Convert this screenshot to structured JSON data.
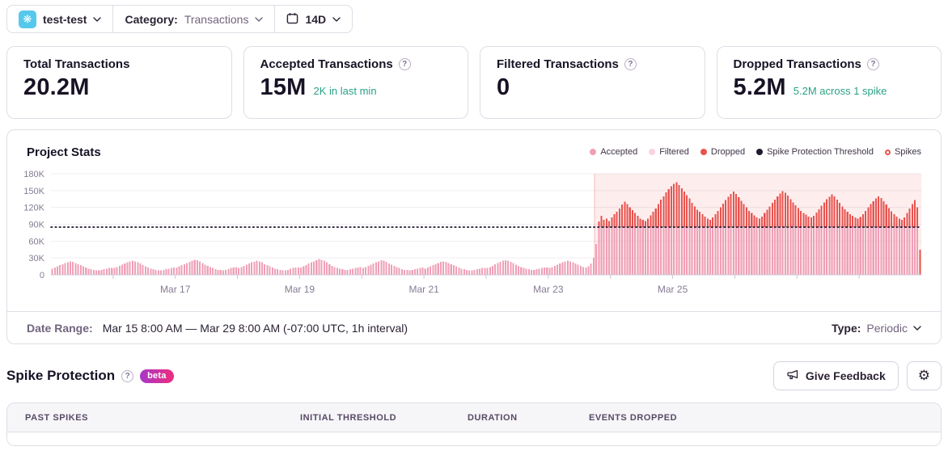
{
  "header": {
    "project_name": "test-test",
    "project_icon": "❋",
    "category_label": "Category:",
    "category_value": "Transactions",
    "period": "14D"
  },
  "cards": [
    {
      "label": "Total Transactions",
      "value": "20.2M",
      "sub": null
    },
    {
      "label": "Accepted Transactions",
      "value": "15M",
      "sub": "2K in last min"
    },
    {
      "label": "Filtered Transactions",
      "value": "0",
      "sub": null
    },
    {
      "label": "Dropped Transactions",
      "value": "5.2M",
      "sub": "5.2M across 1 spike"
    }
  ],
  "accent_colors": {
    "teal_subtext": "#2ba185",
    "beta_gradient": [
      "#a737c9",
      "#ef2d7c"
    ]
  },
  "chart_data": {
    "type": "bar",
    "stacked": true,
    "title": "Project Stats",
    "x_start": "Mar 15 8:00 AM",
    "x_end": "Mar 29 8:00 AM",
    "interval_hours": 1,
    "num_buckets": 336,
    "ylim_k": [
      0,
      180
    ],
    "y_ticks": [
      {
        "value_k": 180,
        "label": "180K"
      },
      {
        "value_k": 150,
        "label": "150K"
      },
      {
        "value_k": 120,
        "label": "120K"
      },
      {
        "value_k": 90,
        "label": "90K"
      },
      {
        "value_k": 60,
        "label": "60K"
      },
      {
        "value_k": 30,
        "label": "30K"
      },
      {
        "value_k": 0,
        "label": "0"
      }
    ],
    "x_tick_labels": [
      {
        "label": "Mar 17",
        "hour": 48
      },
      {
        "label": "Mar 19",
        "hour": 96
      },
      {
        "label": "Mar 21",
        "hour": 144
      },
      {
        "label": "Mar 23",
        "hour": 192
      },
      {
        "label": "Mar 25",
        "hour": 240
      }
    ],
    "day_tick_every_hours": 24,
    "grid": true,
    "legend_position": "top-right",
    "legend": [
      {
        "label": "Accepted",
        "color": "#ef9fb7",
        "hollow": false
      },
      {
        "label": "Filtered",
        "color": "#f9d3df",
        "hollow": false
      },
      {
        "label": "Dropped",
        "color": "#e8534f",
        "hollow": false
      },
      {
        "label": "Spike Protection Threshold",
        "color": "#231a30",
        "hollow": false
      },
      {
        "label": "Spikes",
        "color": "#e8534f",
        "hollow": true
      }
    ],
    "threshold_k": 85,
    "threshold_style": "dotted-black-line",
    "spike_region": {
      "start_hour": 210,
      "end_hour": 336,
      "fill": "rgba(235,80,80,0.10)",
      "edge": "rgba(235,80,80,0.35)"
    },
    "series": [
      {
        "name": "Accepted",
        "color": "#ef9fb7",
        "derivation": "min(total, threshold)"
      },
      {
        "name": "Filtered",
        "color": "#f9d3df",
        "constant_value": 0
      },
      {
        "name": "Dropped",
        "color": "#e8534f",
        "derivation": "max(0, total - threshold)"
      }
    ],
    "last_bar_all_dropped": true,
    "totals_k": [
      11,
      13,
      15,
      17,
      19,
      21,
      22,
      24,
      23,
      21,
      19,
      17,
      15,
      13,
      11,
      10,
      9,
      8,
      8,
      9,
      10,
      11,
      12,
      12,
      12,
      14,
      16,
      18,
      20,
      22,
      24,
      25,
      24,
      22,
      20,
      17,
      15,
      13,
      11,
      10,
      9,
      8,
      8,
      9,
      10,
      11,
      12,
      13,
      13,
      15,
      17,
      19,
      21,
      23,
      25,
      27,
      26,
      24,
      21,
      18,
      16,
      14,
      12,
      10,
      9,
      9,
      8,
      9,
      10,
      12,
      13,
      14,
      12,
      14,
      16,
      18,
      20,
      22,
      23,
      25,
      24,
      22,
      19,
      17,
      15,
      13,
      11,
      10,
      9,
      8,
      8,
      9,
      11,
      12,
      13,
      13,
      13,
      15,
      17,
      20,
      22,
      24,
      26,
      28,
      27,
      25,
      22,
      19,
      16,
      14,
      12,
      11,
      10,
      9,
      9,
      10,
      11,
      12,
      13,
      14,
      12,
      14,
      16,
      18,
      20,
      22,
      24,
      26,
      25,
      23,
      20,
      18,
      16,
      14,
      12,
      10,
      9,
      9,
      8,
      9,
      10,
      11,
      12,
      13,
      11,
      13,
      15,
      17,
      19,
      21,
      23,
      24,
      23,
      21,
      19,
      17,
      15,
      13,
      11,
      10,
      9,
      8,
      8,
      9,
      10,
      11,
      12,
      12,
      12,
      14,
      16,
      19,
      21,
      23,
      25,
      26,
      25,
      23,
      21,
      18,
      16,
      14,
      12,
      11,
      10,
      9,
      9,
      10,
      11,
      12,
      13,
      13,
      12,
      14,
      16,
      18,
      20,
      22,
      24,
      25,
      24,
      22,
      20,
      18,
      16,
      14,
      13,
      15,
      20,
      30,
      55,
      95,
      105,
      98,
      100,
      96,
      102,
      108,
      112,
      118,
      125,
      130,
      126,
      120,
      115,
      110,
      105,
      100,
      98,
      96,
      100,
      106,
      112,
      118,
      126,
      134,
      140,
      147,
      153,
      158,
      162,
      165,
      160,
      154,
      148,
      142,
      136,
      128,
      122,
      116,
      112,
      108,
      104,
      100,
      98,
      102,
      108,
      114,
      120,
      127,
      133,
      139,
      144,
      148,
      144,
      138,
      132,
      126,
      120,
      114,
      110,
      106,
      102,
      100,
      104,
      110,
      116,
      122,
      128,
      134,
      140,
      145,
      149,
      146,
      141,
      135,
      129,
      124,
      119,
      114,
      110,
      107,
      104,
      102,
      105,
      111,
      117,
      123,
      129,
      135,
      139,
      143,
      140,
      134,
      128,
      122,
      117,
      112,
      108,
      105,
      102,
      100,
      103,
      108,
      114,
      120,
      126,
      131,
      136,
      140,
      137,
      131,
      125,
      119,
      113,
      108,
      104,
      100,
      98,
      102,
      110,
      118,
      126,
      133,
      120,
      45
    ]
  },
  "chart_footer": {
    "date_range_label": "Date Range:",
    "date_range_value": "Mar 15 8:00 AM — Mar 29 8:00 AM (-07:00 UTC, 1h interval)",
    "type_label": "Type:",
    "type_value": "Periodic"
  },
  "spike_section": {
    "title": "Spike Protection",
    "badge": "beta",
    "feedback_button": "Give Feedback"
  },
  "table": {
    "columns": [
      "PAST SPIKES",
      "INITIAL THRESHOLD",
      "DURATION",
      "EVENTS DROPPED"
    ]
  }
}
